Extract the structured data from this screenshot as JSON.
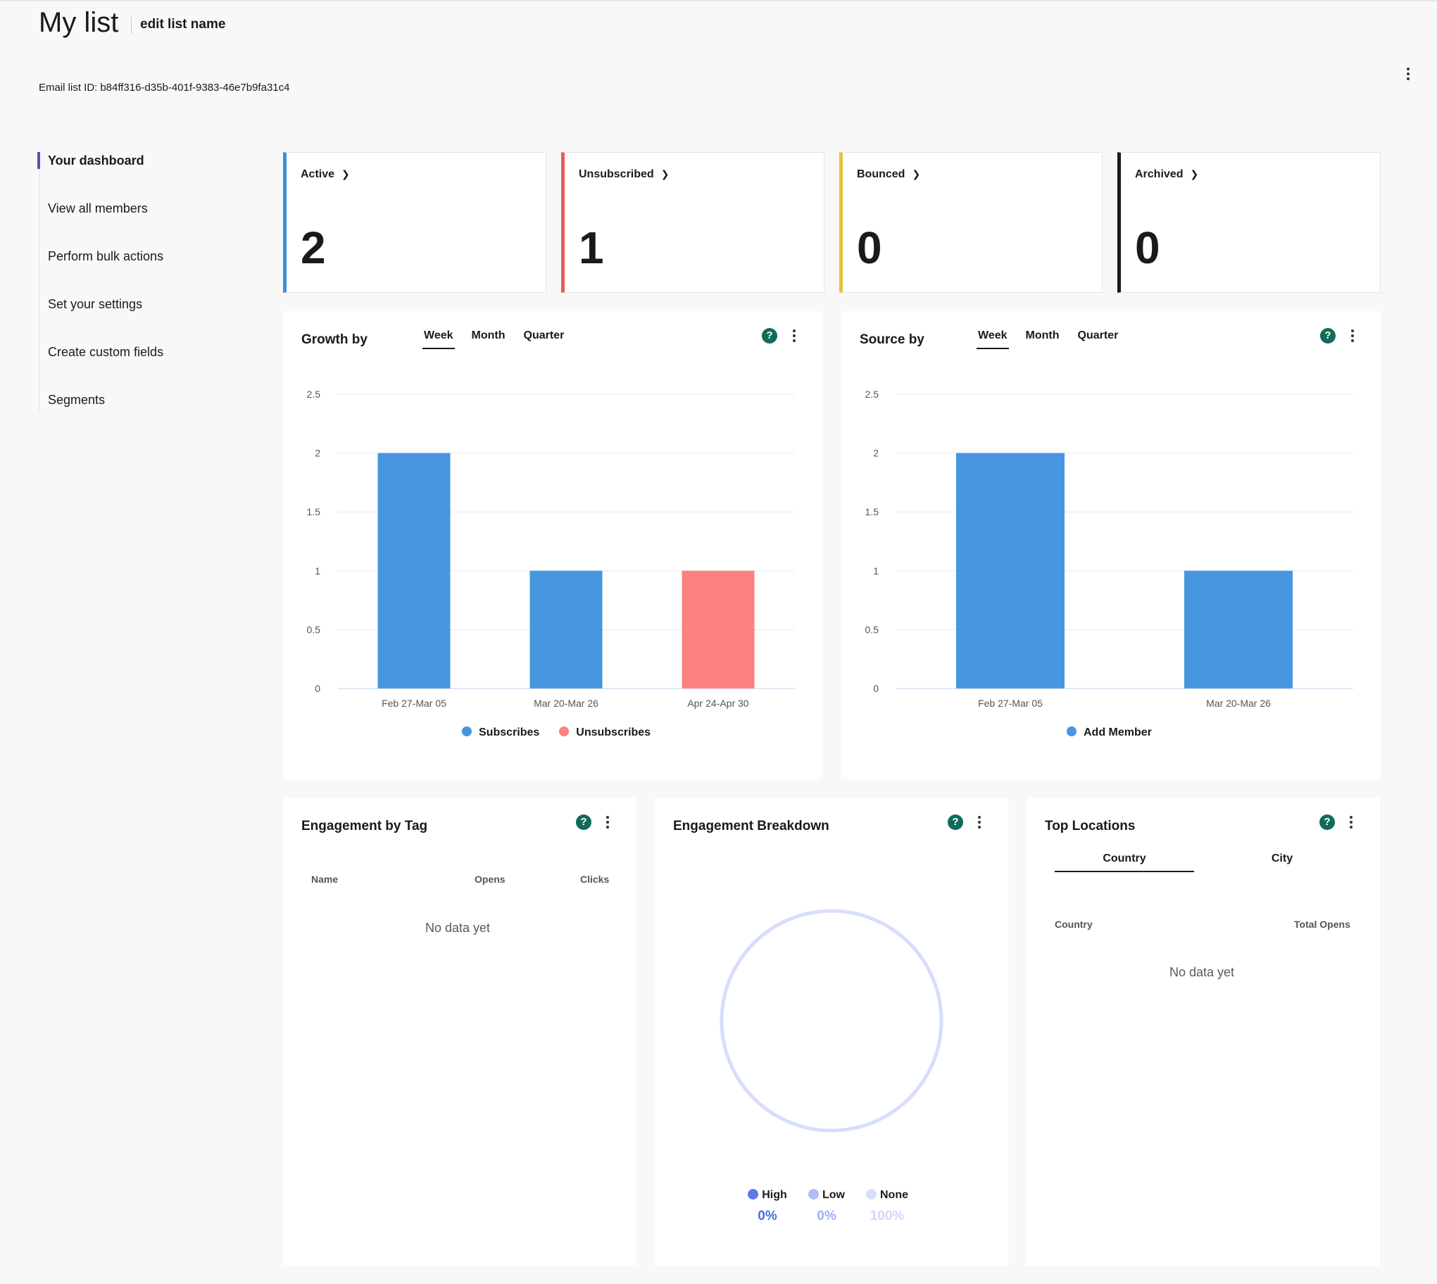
{
  "header": {
    "title": "My list",
    "edit_link": "edit list name",
    "list_id_label": "Email list ID:",
    "list_id": "b84ff316-d35b-401f-9383-46e7b9fa31c4"
  },
  "sidebar": {
    "items": [
      {
        "label": "Your dashboard",
        "active": true
      },
      {
        "label": "View all members",
        "active": false
      },
      {
        "label": "Perform bulk actions",
        "active": false
      },
      {
        "label": "Set your settings",
        "active": false
      },
      {
        "label": "Create custom fields",
        "active": false
      },
      {
        "label": "Segments",
        "active": false
      }
    ]
  },
  "stats": [
    {
      "label": "Active",
      "value": "2",
      "color": "#3b8fd9"
    },
    {
      "label": "Unsubscribed",
      "value": "1",
      "color": "#e85a5a"
    },
    {
      "label": "Bounced",
      "value": "0",
      "color": "#e8c23c"
    },
    {
      "label": "Archived",
      "value": "0",
      "color": "#1a1a1a"
    }
  ],
  "growth": {
    "title": "Growth by",
    "tabs": [
      "Week",
      "Month",
      "Quarter"
    ],
    "active_tab": "Week",
    "help": "?"
  },
  "source": {
    "title": "Source by",
    "tabs": [
      "Week",
      "Month",
      "Quarter"
    ],
    "active_tab": "Week",
    "help": "?"
  },
  "chart_data": [
    {
      "type": "bar",
      "title": "Growth by",
      "categories": [
        "Feb 27-Mar 05",
        "Mar 20-Mar 26",
        "Apr 24-Apr 30"
      ],
      "series": [
        {
          "name": "Subscribes",
          "color": "#4696e0",
          "values": [
            2,
            1,
            0
          ]
        },
        {
          "name": "Unsubscribes",
          "color": "#fc817f",
          "values": [
            0,
            0,
            1
          ]
        }
      ],
      "yticks": [
        "0",
        "0.5",
        "1",
        "1.5",
        "2",
        "2.5"
      ],
      "ylim": [
        0,
        2.5
      ],
      "grid": true,
      "legend": "bottom"
    },
    {
      "type": "bar",
      "title": "Source by",
      "categories": [
        "Feb 27-Mar 05",
        "Mar 20-Mar 26"
      ],
      "series": [
        {
          "name": "Add Member",
          "color": "#4696e0",
          "values": [
            2,
            1
          ]
        }
      ],
      "yticks": [
        "0",
        "0.5",
        "1",
        "1.5",
        "2",
        "2.5"
      ],
      "ylim": [
        0,
        2.5
      ],
      "grid": true,
      "legend": "bottom"
    }
  ],
  "engagement_tag": {
    "title": "Engagement by Tag",
    "columns": [
      "Name",
      "Opens",
      "Clicks"
    ],
    "empty": "No data yet",
    "help": "?"
  },
  "engagement_breakdown": {
    "title": "Engagement Breakdown",
    "help": "?",
    "ring_color": "#d7defc",
    "items": [
      {
        "label": "High",
        "value": "0%",
        "color": "#5b7ae8",
        "text_color": "#4a6de0"
      },
      {
        "label": "Low",
        "value": "0%",
        "color": "#aebdf5",
        "text_color": "#9fb1f3"
      },
      {
        "label": "None",
        "value": "100%",
        "color": "#d7defc",
        "text_color": "#d0d8fb"
      }
    ]
  },
  "top_locations": {
    "title": "Top Locations",
    "help": "?",
    "tabs": [
      "Country",
      "City"
    ],
    "active_tab": "Country",
    "columns": [
      "Country",
      "Total Opens"
    ],
    "empty": "No data yet"
  }
}
